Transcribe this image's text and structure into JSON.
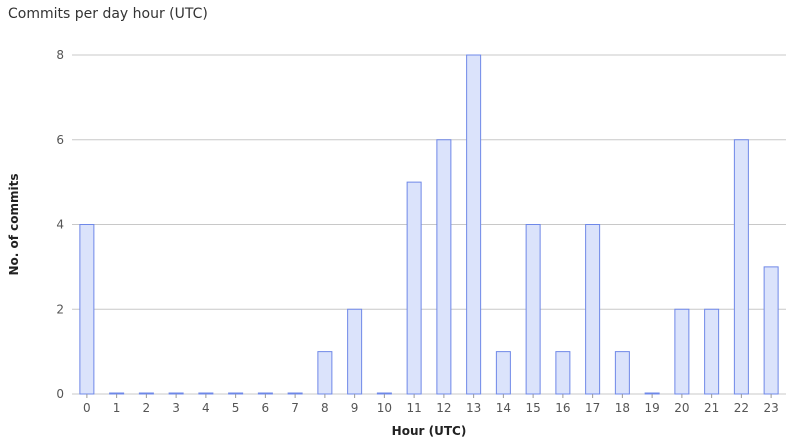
{
  "chart_data": {
    "type": "bar",
    "title": "Commits per day hour (UTC)",
    "xlabel": "Hour (UTC)",
    "ylabel": "No. of commits",
    "categories": [
      "0",
      "1",
      "2",
      "3",
      "4",
      "5",
      "6",
      "7",
      "8",
      "9",
      "10",
      "11",
      "12",
      "13",
      "14",
      "15",
      "16",
      "17",
      "18",
      "19",
      "20",
      "21",
      "22",
      "23"
    ],
    "values": [
      4,
      0,
      0,
      0,
      0,
      0,
      0,
      0,
      1,
      2,
      0,
      5,
      6,
      8,
      1,
      4,
      1,
      4,
      1,
      0,
      2,
      2,
      6,
      3
    ],
    "ylim": [
      0,
      8
    ],
    "yticks": [
      0,
      2,
      4,
      6,
      8
    ],
    "grid": true,
    "colors": {
      "bar_fill": "#dbe3fb",
      "bar_stroke": "#6f88e8",
      "grid": "#c8c8c8"
    }
  }
}
